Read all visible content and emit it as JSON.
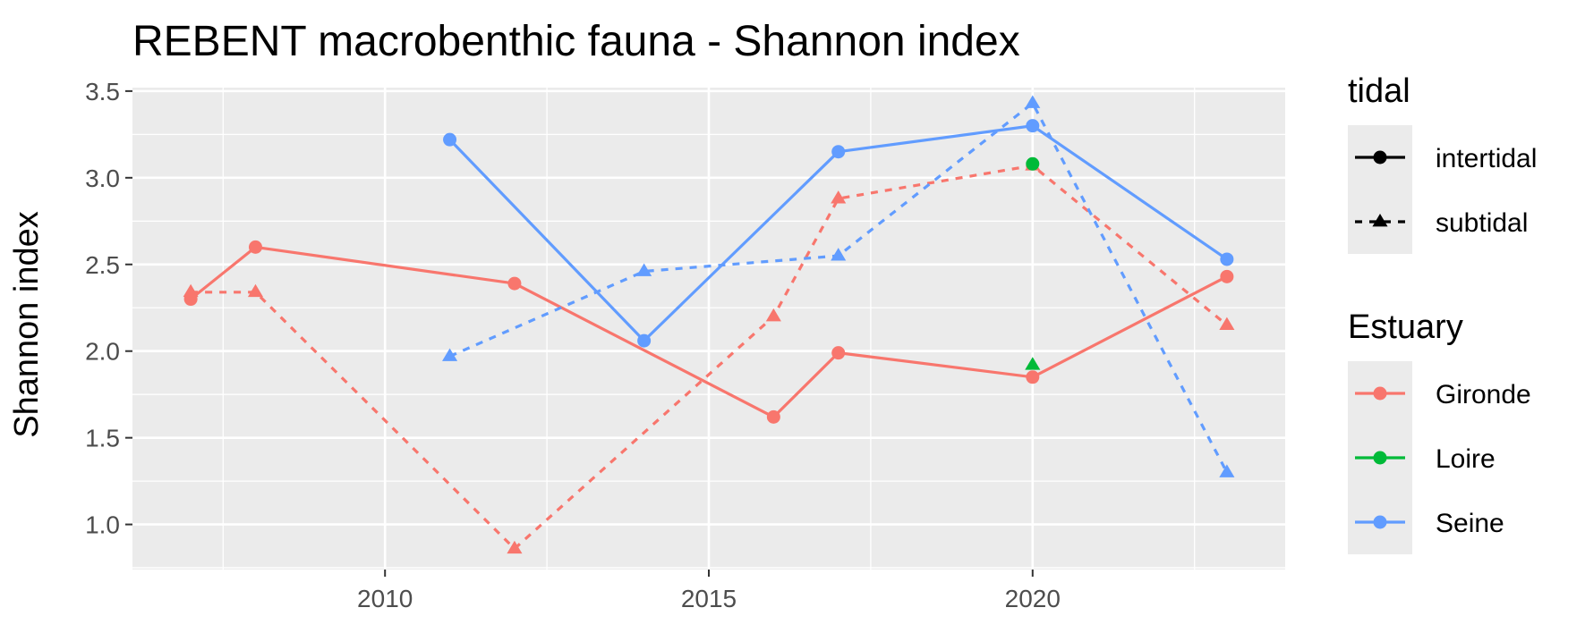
{
  "chart_data": {
    "type": "line",
    "title": "REBENT macrobenthic fauna - Shannon index",
    "xlabel": "",
    "ylabel": "Shannon index",
    "xlim": [
      2006.1,
      2023.9
    ],
    "ylim": [
      0.74,
      3.52
    ],
    "x_ticks": [
      2010,
      2015,
      2020
    ],
    "y_ticks": [
      1.0,
      1.5,
      2.0,
      2.5,
      3.0,
      3.5
    ],
    "y_tick_labels": [
      "1.0",
      "1.5",
      "2.0",
      "2.5",
      "3.0",
      "3.5"
    ],
    "grid": true,
    "legend_position": "right",
    "legends": [
      {
        "title": "tidal",
        "entries": [
          {
            "label": "intertidal",
            "linetype": "solid",
            "shape": "circle"
          },
          {
            "label": "subtidal",
            "linetype": "dashed",
            "shape": "triangle"
          }
        ]
      },
      {
        "title": "Estuary",
        "entries": [
          {
            "label": "Gironde",
            "color": "#F8766D"
          },
          {
            "label": "Loire",
            "color": "#00BA38"
          },
          {
            "label": "Seine",
            "color": "#619CFF"
          }
        ]
      }
    ],
    "series": [
      {
        "estuary": "Gironde",
        "tidal": "intertidal",
        "color": "#F8766D",
        "points": [
          [
            2007,
            2.3
          ],
          [
            2008,
            2.6
          ],
          [
            2012,
            2.39
          ],
          [
            2016,
            1.62
          ],
          [
            2017,
            1.99
          ],
          [
            2020,
            1.85
          ],
          [
            2023,
            2.43
          ]
        ]
      },
      {
        "estuary": "Gironde",
        "tidal": "subtidal",
        "color": "#F8766D",
        "points": [
          [
            2007,
            2.34
          ],
          [
            2008,
            2.34
          ],
          [
            2012,
            0.86
          ],
          [
            2016,
            2.2
          ],
          [
            2017,
            2.88
          ],
          [
            2020,
            3.07
          ],
          [
            2023,
            2.15
          ]
        ]
      },
      {
        "estuary": "Loire",
        "tidal": "intertidal",
        "color": "#00BA38",
        "points": [
          [
            2020,
            3.08
          ]
        ]
      },
      {
        "estuary": "Loire",
        "tidal": "subtidal",
        "color": "#00BA38",
        "points": [
          [
            2020,
            1.92
          ]
        ]
      },
      {
        "estuary": "Seine",
        "tidal": "intertidal",
        "color": "#619CFF",
        "points": [
          [
            2011,
            3.22
          ],
          [
            2014,
            2.06
          ],
          [
            2017,
            3.15
          ],
          [
            2020,
            3.3
          ],
          [
            2023,
            2.53
          ]
        ]
      },
      {
        "estuary": "Seine",
        "tidal": "subtidal",
        "color": "#619CFF",
        "points": [
          [
            2011,
            1.97
          ],
          [
            2014,
            2.46
          ],
          [
            2017,
            2.55
          ],
          [
            2020,
            3.43
          ],
          [
            2023,
            1.3
          ]
        ]
      }
    ]
  }
}
